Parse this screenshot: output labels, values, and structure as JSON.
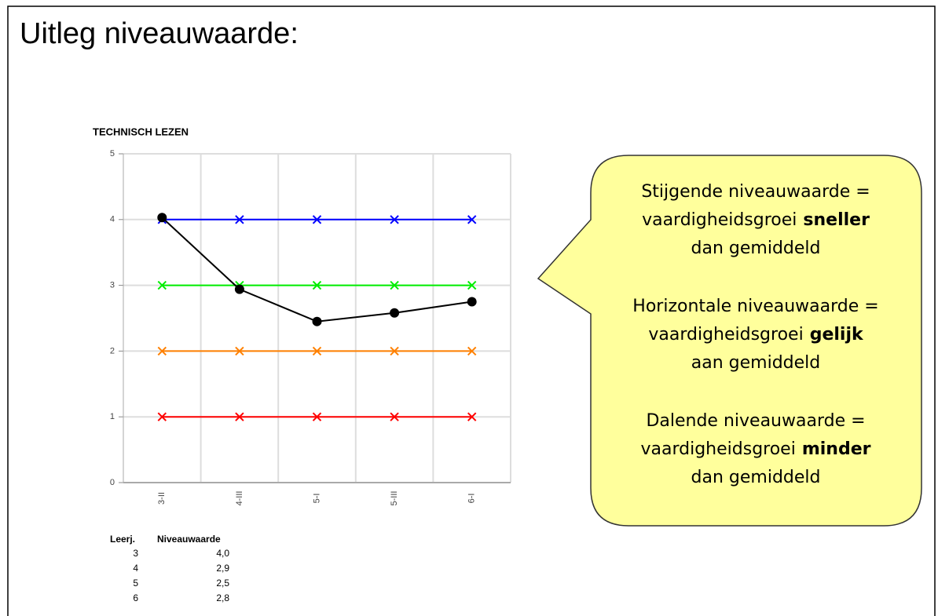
{
  "page_title": "Uitleg niveauwaarde:",
  "chart_data": {
    "type": "line",
    "title": "TECHNISCH LEZEN",
    "categories": [
      "3-II",
      "4-III",
      "5-I",
      "5-III",
      "6-I"
    ],
    "series": [
      {
        "color": "#0000ff",
        "marker": "x",
        "values": [
          4,
          4,
          4,
          4,
          4
        ]
      },
      {
        "color": "#00ee00",
        "marker": "x",
        "values": [
          3,
          3,
          3,
          3,
          3
        ]
      },
      {
        "color": "#ff8000",
        "marker": "x",
        "values": [
          2,
          2,
          2,
          2,
          2
        ]
      },
      {
        "color": "#ff0000",
        "marker": "x",
        "values": [
          1,
          1,
          1,
          1,
          1
        ]
      },
      {
        "color": "#000000",
        "marker": "circle",
        "values": [
          4.03,
          2.94,
          2.45,
          2.58,
          2.75
        ]
      }
    ],
    "ylim": [
      0,
      5
    ],
    "yticks": [
      0,
      1,
      2,
      3,
      4,
      5
    ],
    "grid": true
  },
  "table": {
    "header": [
      "Leerj.",
      "Niveauwaarde"
    ],
    "rows": [
      [
        "3",
        "4,0"
      ],
      [
        "4",
        "2,9"
      ],
      [
        "5",
        "2,5"
      ],
      [
        "6",
        "2,8"
      ]
    ]
  },
  "callout": [
    {
      "lead": "Stijgende niveauwaarde =",
      "middle": "vaardigheidsgroei",
      "emphasis": "sneller",
      "tail": "dan gemiddeld"
    },
    {
      "lead": "Horizontale niveauwaarde =",
      "middle": "vaardigheidsgroei",
      "emphasis": "gelijk",
      "tail": "aan gemiddeld"
    },
    {
      "lead": "Dalende niveauwaarde =",
      "middle": "vaardigheidsgroei",
      "emphasis": "minder",
      "tail": "dan gemiddeld"
    }
  ]
}
